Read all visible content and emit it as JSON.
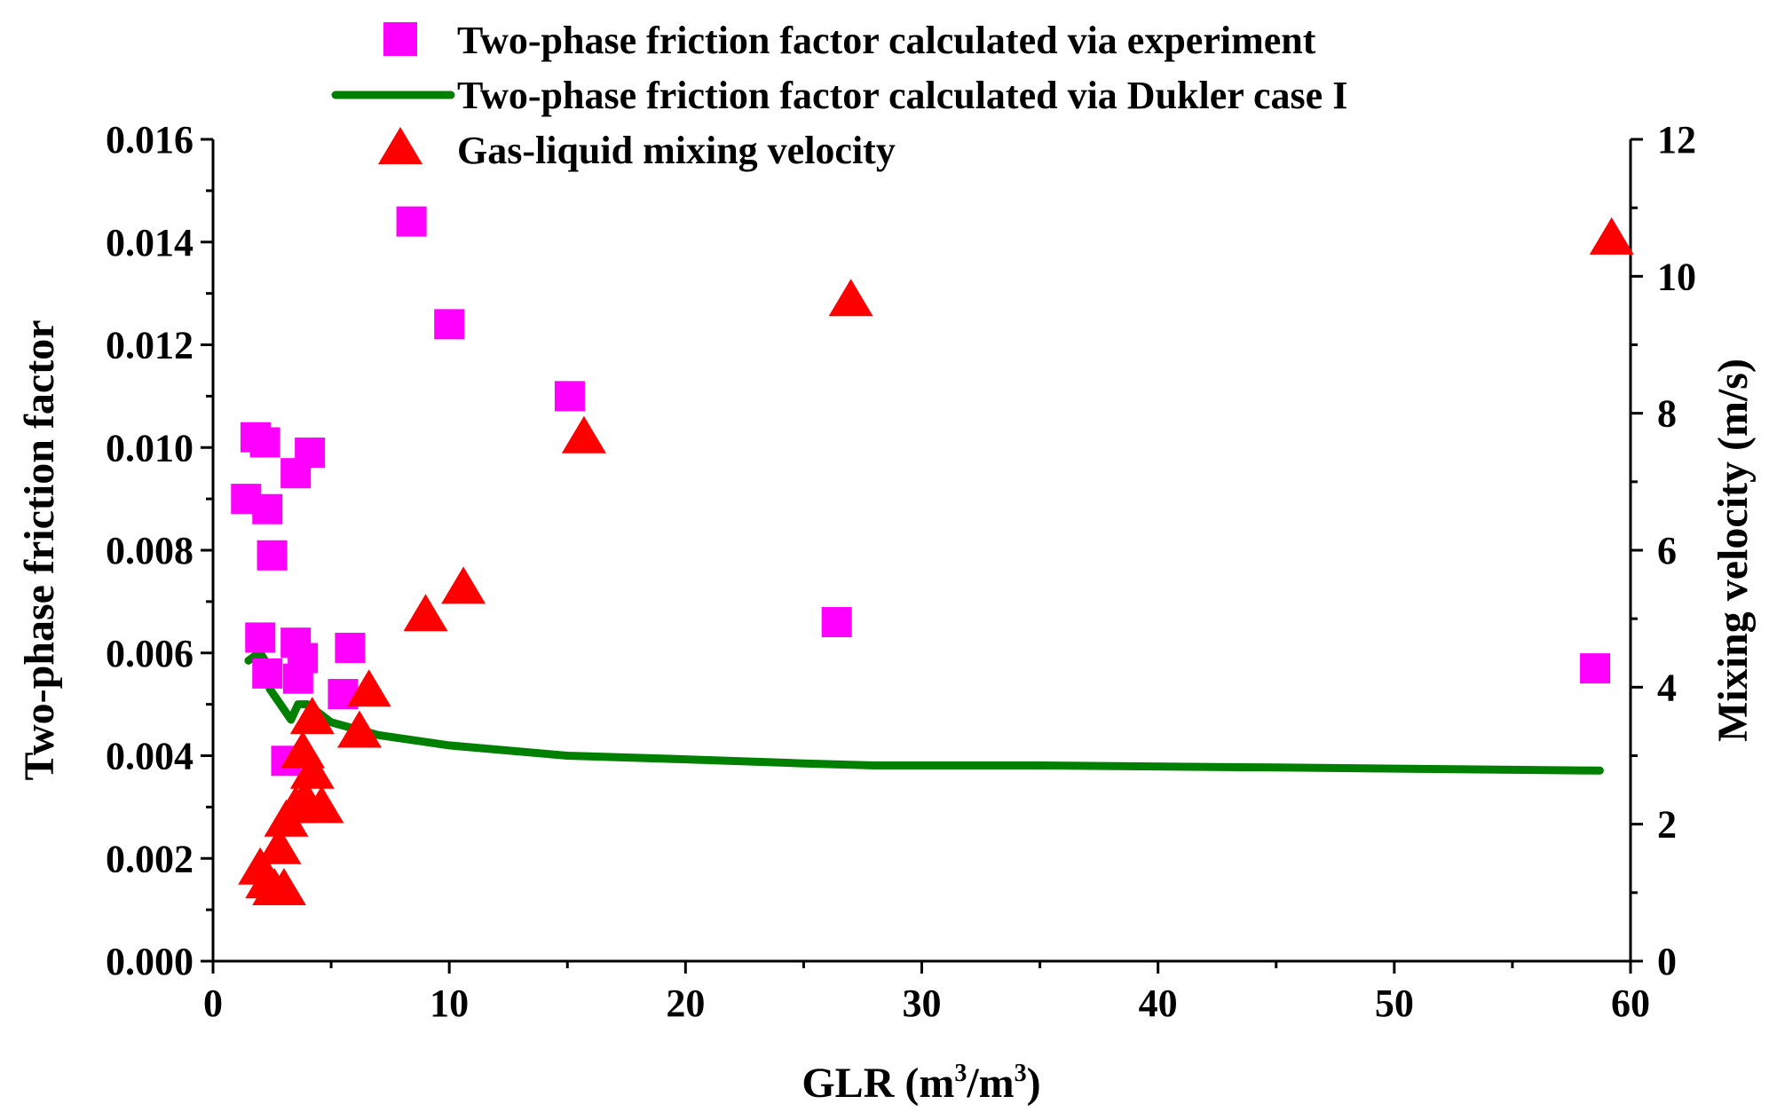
{
  "chart_data": {
    "type": "scatter",
    "xlabel": "GLR (m",
    "xlabel_sup1": "3",
    "xlabel_mid": "/m",
    "xlabel_sup2": "3",
    "xlabel_end": ")",
    "ylabel_left": "Two-phase friction factor",
    "ylabel_right": "Mixing velocity (m/s)",
    "xlim": [
      0,
      60
    ],
    "ylim_left": [
      0,
      0.016
    ],
    "ylim_right": [
      0,
      12
    ],
    "x_ticks": [
      "0",
      "10",
      "20",
      "30",
      "40",
      "50",
      "60"
    ],
    "y_left_ticks": [
      "0.000",
      "0.002",
      "0.004",
      "0.006",
      "0.008",
      "0.010",
      "0.012",
      "0.014",
      "0.016"
    ],
    "y_right_ticks": [
      "0",
      "2",
      "4",
      "6",
      "8",
      "10",
      "12"
    ],
    "legend_position": "top-center",
    "series": [
      {
        "name": "Two-phase friction factor calculated via experiment",
        "marker": "square",
        "axis": "left",
        "color": "#FF00FF",
        "points": [
          [
            1.4,
            0.009
          ],
          [
            1.8,
            0.0102
          ],
          [
            2.2,
            0.0101
          ],
          [
            2.3,
            0.0088
          ],
          [
            2.5,
            0.0079
          ],
          [
            2.0,
            0.0063
          ],
          [
            2.3,
            0.0056
          ],
          [
            3.1,
            0.0039
          ],
          [
            3.5,
            0.0062
          ],
          [
            3.8,
            0.0059
          ],
          [
            3.6,
            0.0055
          ],
          [
            3.5,
            0.0095
          ],
          [
            4.1,
            0.0099
          ],
          [
            5.8,
            0.0061
          ],
          [
            5.5,
            0.0052
          ],
          [
            8.4,
            0.0144
          ],
          [
            10.0,
            0.0124
          ],
          [
            15.1,
            0.011
          ],
          [
            26.4,
            0.0066
          ],
          [
            58.5,
            0.0057
          ]
        ]
      },
      {
        "name": "Two-phase friction factor calculated via Dukler case I",
        "marker": "line",
        "axis": "left",
        "color": "#008000",
        "points": [
          [
            1.5,
            0.00585
          ],
          [
            1.8,
            0.00595
          ],
          [
            2.0,
            0.006
          ],
          [
            2.2,
            0.00585
          ],
          [
            2.4,
            0.0053
          ],
          [
            2.7,
            0.0051
          ],
          [
            3.0,
            0.0049
          ],
          [
            3.3,
            0.0047
          ],
          [
            3.6,
            0.005
          ],
          [
            4.0,
            0.005
          ],
          [
            5.0,
            0.00465
          ],
          [
            7.0,
            0.0044
          ],
          [
            10.0,
            0.0042
          ],
          [
            15.0,
            0.004
          ],
          [
            20.0,
            0.00393
          ],
          [
            25.0,
            0.00385
          ],
          [
            28.0,
            0.00381
          ],
          [
            35.0,
            0.00381
          ],
          [
            45.0,
            0.00377
          ],
          [
            58.7,
            0.00371
          ]
        ]
      },
      {
        "name": "Gas-liquid mixing velocity",
        "marker": "triangle",
        "axis": "right",
        "color": "#FF0000",
        "points": [
          [
            2.0,
            1.35
          ],
          [
            2.3,
            1.15
          ],
          [
            2.6,
            1.05
          ],
          [
            3.0,
            1.05
          ],
          [
            2.8,
            1.65
          ],
          [
            3.1,
            2.05
          ],
          [
            3.5,
            2.25
          ],
          [
            3.9,
            2.35
          ],
          [
            4.2,
            2.75
          ],
          [
            4.6,
            2.25
          ],
          [
            3.8,
            3.05
          ],
          [
            4.2,
            3.55
          ],
          [
            6.2,
            3.35
          ],
          [
            6.6,
            3.95
          ],
          [
            9.0,
            5.05
          ],
          [
            10.6,
            5.45
          ],
          [
            15.7,
            7.65
          ],
          [
            27.0,
            9.65
          ],
          [
            59.2,
            10.55
          ]
        ]
      }
    ]
  }
}
